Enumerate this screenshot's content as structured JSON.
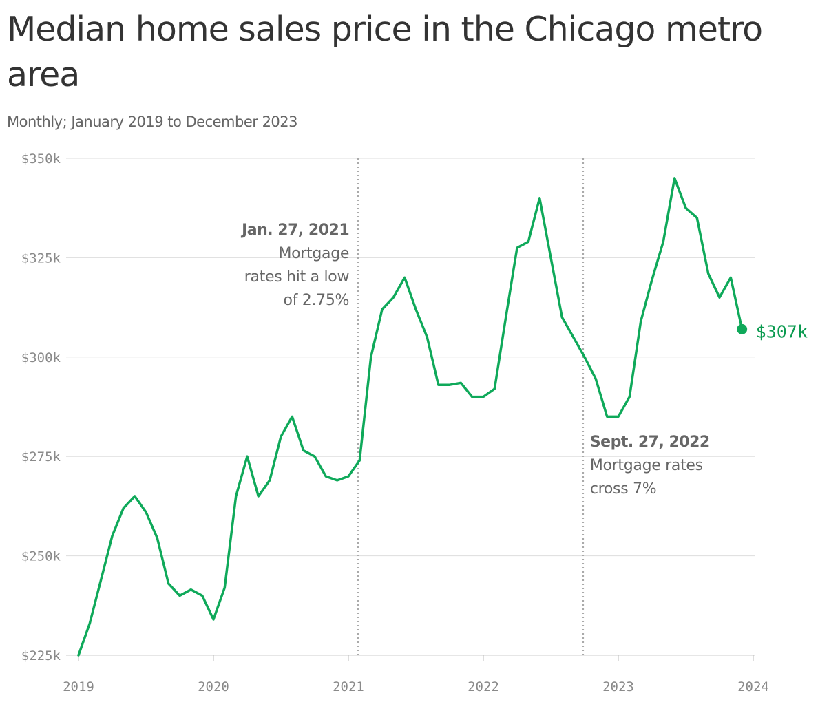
{
  "header": {
    "title": "Median home sales price in the Chicago metro area",
    "subtitle": "Monthly; January 2019 to December 2023"
  },
  "colors": {
    "line": "#0fa95a",
    "end_label": "#0a9a4f",
    "grid": "#dddddd",
    "annotation_line": "#aaaaaa",
    "text": "#333333",
    "muted": "#666666"
  },
  "chart_data": {
    "type": "line",
    "title": "Median home sales price in the Chicago metro area",
    "subtitle": "Monthly; January 2019 to December 2023",
    "ylim": [
      225000,
      350000
    ],
    "xlim": [
      "2019-01",
      "2024-01"
    ],
    "y_ticks": [
      {
        "value": 225000,
        "label": "$225k"
      },
      {
        "value": 250000,
        "label": "$250k"
      },
      {
        "value": 275000,
        "label": "$275k"
      },
      {
        "value": 300000,
        "label": "$300k"
      },
      {
        "value": 325000,
        "label": "$325k"
      },
      {
        "value": 350000,
        "label": "$350k"
      }
    ],
    "x_ticks": [
      {
        "value": "2019-01",
        "label": "2019"
      },
      {
        "value": "2020-01",
        "label": "2020"
      },
      {
        "value": "2021-01",
        "label": "2021"
      },
      {
        "value": "2022-01",
        "label": "2022"
      },
      {
        "value": "2023-01",
        "label": "2023"
      },
      {
        "value": "2024-01",
        "label": "2024"
      }
    ],
    "grid": true,
    "x": [
      "2019-01",
      "2019-02",
      "2019-03",
      "2019-04",
      "2019-05",
      "2019-06",
      "2019-07",
      "2019-08",
      "2019-09",
      "2019-10",
      "2019-11",
      "2019-12",
      "2020-01",
      "2020-02",
      "2020-03",
      "2020-04",
      "2020-05",
      "2020-06",
      "2020-07",
      "2020-08",
      "2020-09",
      "2020-10",
      "2020-11",
      "2020-12",
      "2021-01",
      "2021-02",
      "2021-03",
      "2021-04",
      "2021-05",
      "2021-06",
      "2021-07",
      "2021-08",
      "2021-09",
      "2021-10",
      "2021-11",
      "2021-12",
      "2022-01",
      "2022-02",
      "2022-03",
      "2022-04",
      "2022-05",
      "2022-06",
      "2022-07",
      "2022-08",
      "2022-09",
      "2022-10",
      "2022-11",
      "2022-12",
      "2023-01",
      "2023-02",
      "2023-03",
      "2023-04",
      "2023-05",
      "2023-06",
      "2023-07",
      "2023-08",
      "2023-09",
      "2023-10",
      "2023-11",
      "2023-12"
    ],
    "series": [
      {
        "values": [
          225000,
          233000,
          244000,
          255000,
          262000,
          265000,
          261000,
          254500,
          243000,
          240000,
          241500,
          240000,
          234000,
          242000,
          265000,
          275000,
          265000,
          269000,
          280000,
          285000,
          276500,
          275000,
          270000,
          269000,
          270000,
          274000,
          300000,
          312000,
          315000,
          320000,
          312000,
          305000,
          293000,
          293000,
          293500,
          290000,
          290000,
          292000,
          310000,
          327500,
          329000,
          340000,
          325000,
          310000,
          305000,
          300000,
          294500,
          285000,
          285000,
          290000,
          309000,
          319500,
          329000,
          345000,
          337500,
          335000,
          321000,
          315000,
          320000,
          307000
        ]
      }
    ],
    "end_label": "$307k",
    "annotations": [
      {
        "x": "2021-01-27",
        "head": "Jan. 27, 2021",
        "lines": [
          "Mortgage",
          "rates hit a low",
          "of 2.75%"
        ],
        "align": "right"
      },
      {
        "x": "2022-09-27",
        "head": "Sept. 27, 2022",
        "lines": [
          "Mortgage rates",
          "cross 7%"
        ],
        "align": "left"
      }
    ]
  }
}
